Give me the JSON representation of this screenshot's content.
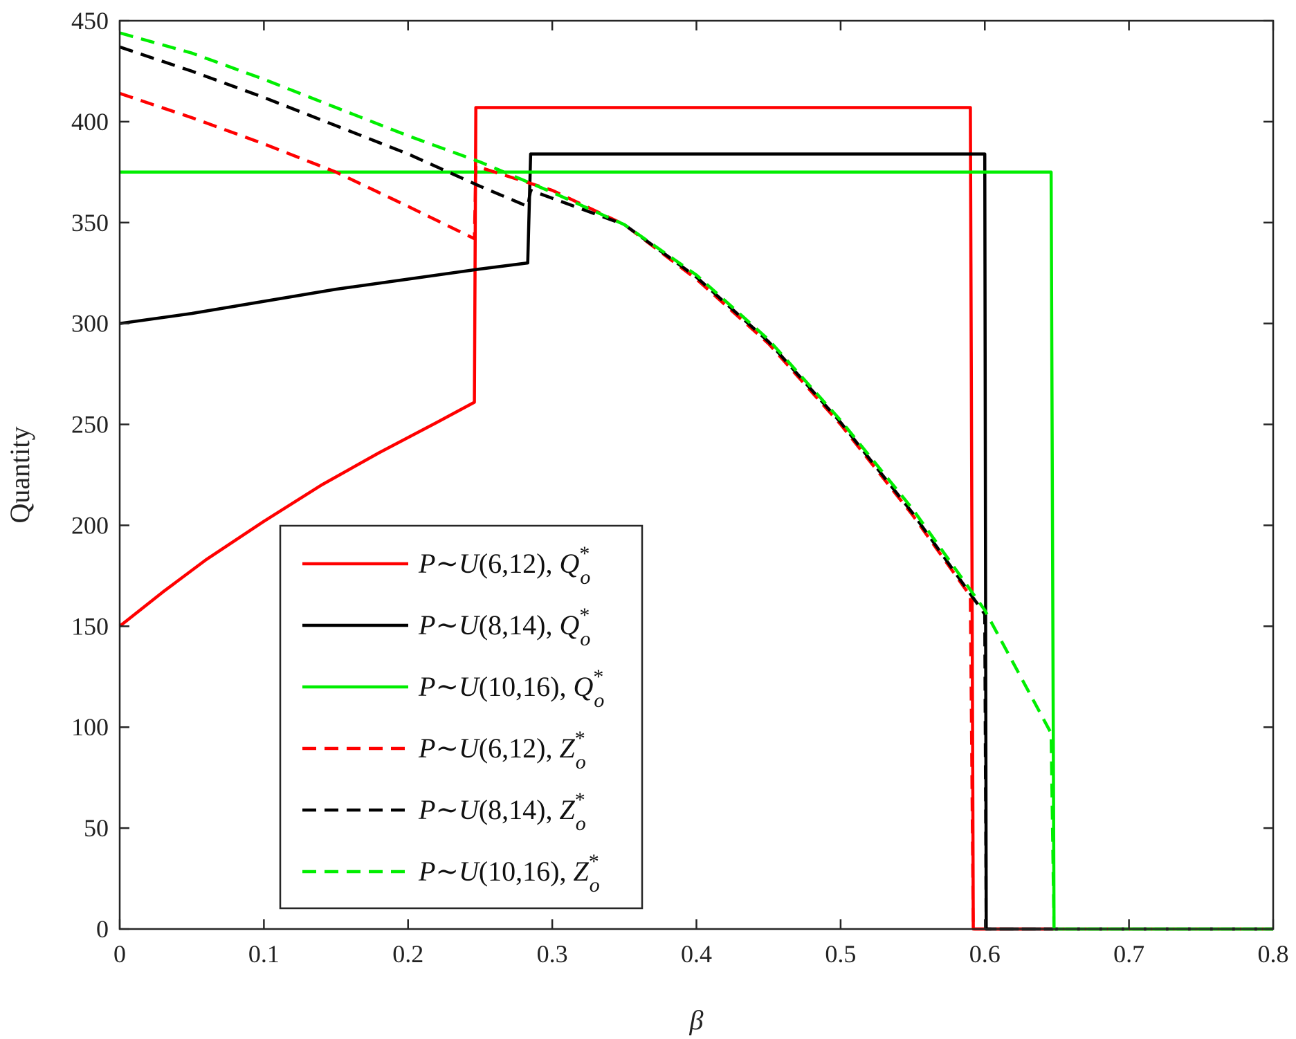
{
  "chart_data": {
    "type": "line",
    "title": "",
    "xlabel": "β",
    "ylabel": "Quantity",
    "xlim": [
      0,
      0.8
    ],
    "ylim": [
      0,
      450
    ],
    "xticks": [
      0,
      0.1,
      0.2,
      0.3,
      0.4,
      0.5,
      0.6,
      0.7,
      0.8
    ],
    "xtick_labels": [
      "0",
      "0.1",
      "0.2",
      "0.3",
      "0.4",
      "0.5",
      "0.6",
      "0.7",
      "0.8"
    ],
    "yticks": [
      0,
      50,
      100,
      150,
      200,
      250,
      300,
      350,
      400,
      450
    ],
    "ytick_labels": [
      "0",
      "50",
      "100",
      "150",
      "200",
      "250",
      "300",
      "350",
      "400",
      "450"
    ],
    "grid": false,
    "legend_position": "lower-left",
    "series": [
      {
        "name": "P~U(6,12), Q_o*",
        "legend": {
          "dist": "(6,12), ",
          "sym": "Q"
        },
        "color": "#ff0000",
        "dash": "solid",
        "points": [
          [
            0,
            150
          ],
          [
            0.03,
            167
          ],
          [
            0.06,
            183
          ],
          [
            0.1,
            202
          ],
          [
            0.14,
            220
          ],
          [
            0.18,
            236
          ],
          [
            0.22,
            251
          ],
          [
            0.246,
            261
          ],
          [
            0.247,
            407
          ],
          [
            0.59,
            407
          ],
          [
            0.592,
            0
          ],
          [
            0.8,
            0
          ]
        ]
      },
      {
        "name": "P~U(8,14), Q_o*",
        "legend": {
          "dist": "(8,14), ",
          "sym": "Q"
        },
        "color": "#000000",
        "dash": "solid",
        "points": [
          [
            0,
            300
          ],
          [
            0.05,
            305
          ],
          [
            0.1,
            311
          ],
          [
            0.15,
            317
          ],
          [
            0.2,
            322
          ],
          [
            0.25,
            327
          ],
          [
            0.283,
            330
          ],
          [
            0.285,
            384
          ],
          [
            0.6,
            384
          ],
          [
            0.601,
            0
          ],
          [
            0.8,
            0
          ]
        ]
      },
      {
        "name": "P~U(10,16), Q_o*",
        "legend": {
          "dist": "(10,16), ",
          "sym": "Q"
        },
        "color": "#00ee00",
        "dash": "solid",
        "points": [
          [
            0,
            375
          ],
          [
            0.646,
            375
          ],
          [
            0.648,
            0
          ],
          [
            0.8,
            0
          ]
        ]
      },
      {
        "name": "P~U(6,12), Z_o*",
        "legend": {
          "dist": "(6,12), ",
          "sym": "Z"
        },
        "color": "#ff0000",
        "dash": "dashed",
        "points": [
          [
            0,
            414
          ],
          [
            0.05,
            402
          ],
          [
            0.1,
            389
          ],
          [
            0.15,
            375
          ],
          [
            0.2,
            358
          ],
          [
            0.246,
            342
          ],
          [
            0.247,
            378
          ],
          [
            0.3,
            366
          ],
          [
            0.35,
            349
          ],
          [
            0.4,
            322
          ],
          [
            0.45,
            290
          ],
          [
            0.5,
            250
          ],
          [
            0.55,
            205
          ],
          [
            0.59,
            165
          ],
          [
            0.592,
            0
          ],
          [
            0.8,
            0
          ]
        ]
      },
      {
        "name": "P~U(8,14), Z_o*",
        "legend": {
          "dist": "(8,14), ",
          "sym": "Z"
        },
        "color": "#000000",
        "dash": "dashed",
        "points": [
          [
            0,
            437
          ],
          [
            0.05,
            425
          ],
          [
            0.1,
            412
          ],
          [
            0.15,
            398
          ],
          [
            0.2,
            384
          ],
          [
            0.25,
            368
          ],
          [
            0.283,
            358
          ],
          [
            0.285,
            366
          ],
          [
            0.35,
            349
          ],
          [
            0.4,
            323
          ],
          [
            0.45,
            291
          ],
          [
            0.5,
            251
          ],
          [
            0.55,
            206
          ],
          [
            0.6,
            156
          ],
          [
            0.601,
            0
          ],
          [
            0.8,
            0
          ]
        ]
      },
      {
        "name": "P~U(10,16), Z_o*",
        "legend": {
          "dist": "(10,16), ",
          "sym": "Z"
        },
        "color": "#00ee00",
        "dash": "dashed",
        "points": [
          [
            0,
            444
          ],
          [
            0.05,
            434
          ],
          [
            0.1,
            421
          ],
          [
            0.15,
            407
          ],
          [
            0.2,
            393
          ],
          [
            0.25,
            380
          ],
          [
            0.3,
            365
          ],
          [
            0.35,
            349
          ],
          [
            0.4,
            324
          ],
          [
            0.45,
            292
          ],
          [
            0.5,
            252
          ],
          [
            0.55,
            208
          ],
          [
            0.6,
            158
          ],
          [
            0.646,
            97
          ],
          [
            0.648,
            0
          ],
          [
            0.8,
            0
          ]
        ]
      }
    ]
  }
}
